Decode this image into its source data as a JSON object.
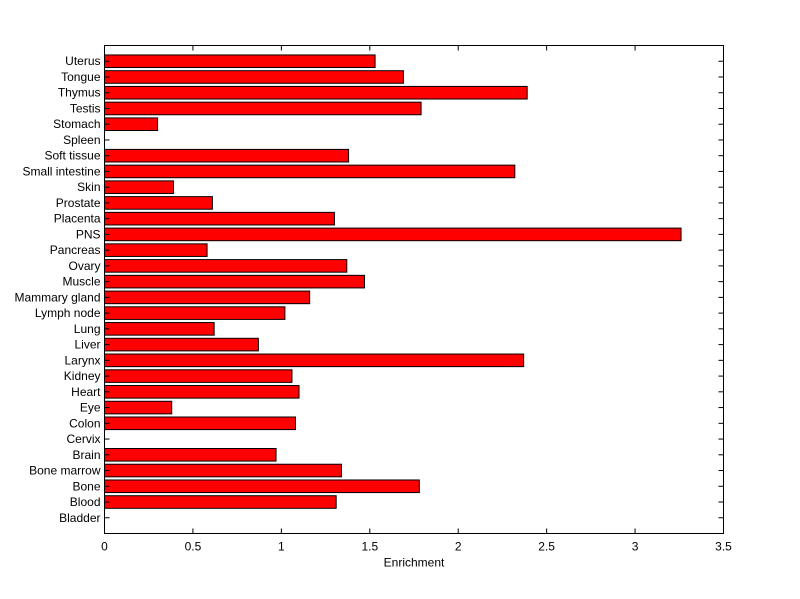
{
  "chart_data": {
    "type": "bar",
    "orientation": "horizontal",
    "title": "",
    "xlabel": "Enrichment",
    "ylabel": "",
    "xlim": [
      0,
      3.5
    ],
    "xticks": [
      0,
      0.5,
      1,
      1.5,
      2,
      2.5,
      3,
      3.5
    ],
    "xtick_labels": [
      "0",
      "0.5",
      "1",
      "1.5",
      "2",
      "2.5",
      "3",
      "3.5"
    ],
    "grid": false,
    "legend": "none",
    "bar_color": "#ff0000",
    "edge_color": "#000000",
    "categories": [
      "Bladder",
      "Blood",
      "Bone",
      "Bone marrow",
      "Brain",
      "Cervix",
      "Colon",
      "Eye",
      "Heart",
      "Kidney",
      "Larynx",
      "Liver",
      "Lung",
      "Lymph node",
      "Mammary gland",
      "Muscle",
      "Ovary",
      "Pancreas",
      "PNS",
      "Placenta",
      "Prostate",
      "Skin",
      "Small intestine",
      "Soft tissue",
      "Spleen",
      "Stomach",
      "Testis",
      "Thymus",
      "Tongue",
      "Uterus"
    ],
    "values": [
      0,
      1.31,
      1.78,
      1.34,
      0.97,
      0,
      1.08,
      0.38,
      1.1,
      1.06,
      2.37,
      0.87,
      0.62,
      1.02,
      1.16,
      1.47,
      1.37,
      0.58,
      3.26,
      1.3,
      0.61,
      0.39,
      2.32,
      1.38,
      0,
      0.3,
      1.79,
      2.39,
      1.69,
      1.53
    ]
  }
}
